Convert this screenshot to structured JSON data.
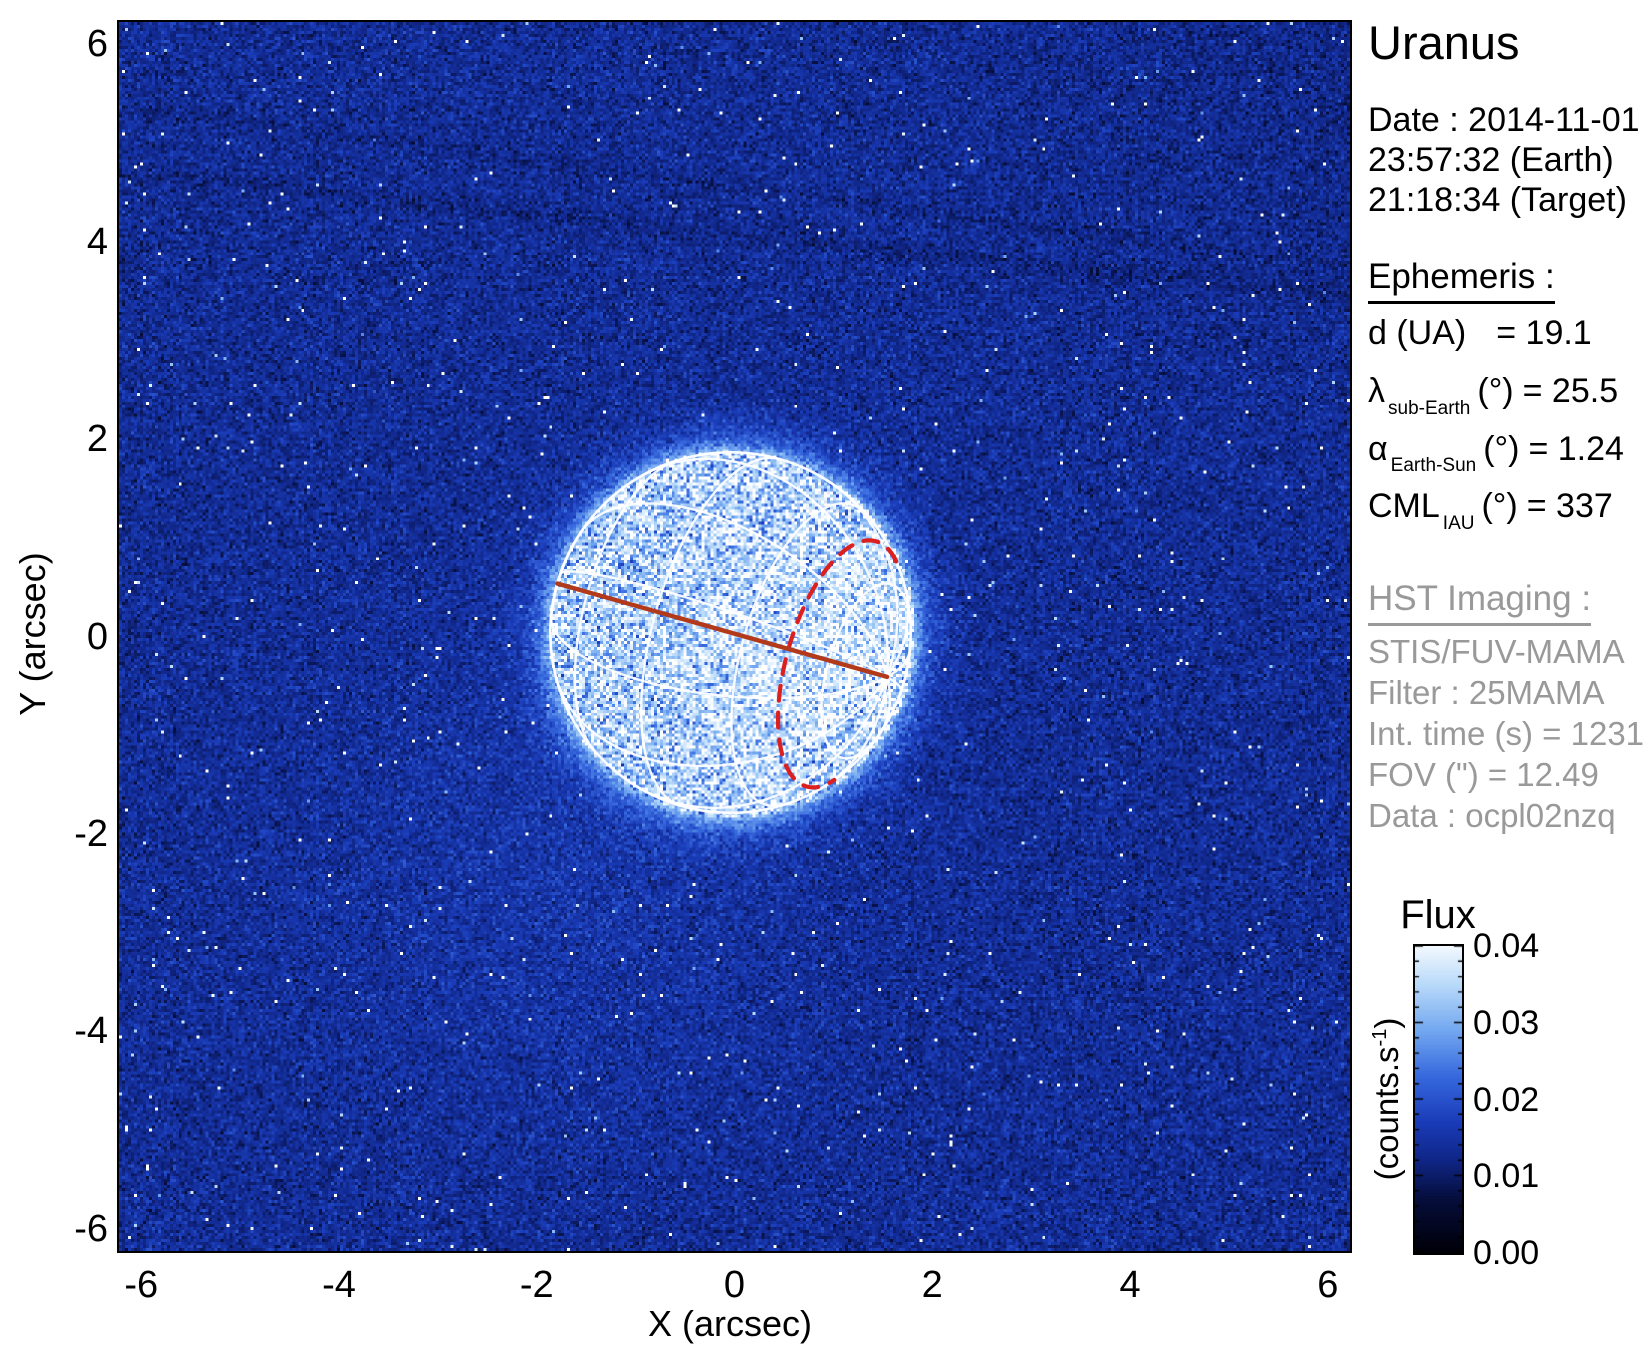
{
  "title": "Uranus",
  "date": {
    "line1": "Date : 2014-11-01",
    "line2": "23:57:32 (Earth)",
    "line3": "21:18:34 (Target)"
  },
  "ephemeris": {
    "heading": "Ephemeris :",
    "rows": [
      {
        "sym": "d (UA)",
        "sub": "",
        "mid": "",
        "val": "= 19.1"
      },
      {
        "sym": "λ",
        "sub": "sub-Earth",
        "mid": "(°)",
        "val": "= 25.5"
      },
      {
        "sym": "α",
        "sub": "Earth-Sun",
        "mid": "(°)",
        "val": "= 1.24"
      },
      {
        "sym": "CML",
        "sub": "IAU",
        "mid": "(°)",
        "val": "= 337"
      }
    ]
  },
  "hst_imaging": {
    "heading": "HST Imaging :",
    "lines": [
      "STIS/FUV-MAMA",
      "Filter : 25MAMA",
      "Int. time (s) = 1231",
      "FOV (\") = 12.49",
      "Data : ocpl02nzq"
    ]
  },
  "colorbar": {
    "title": "Flux",
    "unit_prefix": "(counts.s",
    "unit_sup": "-1",
    "unit_suffix": ")",
    "tick_labels": [
      "0.04",
      "0.03",
      "0.02",
      "0.01",
      "0.00"
    ],
    "tick_values": [
      0.04,
      0.03,
      0.02,
      0.01,
      0.0
    ],
    "range": [
      0.0,
      0.04
    ]
  },
  "chart_data": {
    "type": "heatmap",
    "title": "Uranus",
    "xlabel": "X (arcsec)",
    "ylabel": "Y (arcsec)",
    "xlim": [
      -6.245,
      6.245
    ],
    "ylim": [
      -6.245,
      6.245
    ],
    "xticks": [
      -6,
      -4,
      -2,
      0,
      2,
      4,
      6
    ],
    "yticks": [
      6,
      4,
      2,
      0,
      -2,
      -4,
      -6
    ],
    "flux_range_counts_per_s": [
      0.0,
      0.04
    ],
    "background_flux_mean": 0.0135,
    "disk_flux_mean": 0.0335,
    "planet": {
      "center_arcsec": [
        -0.04,
        0.04
      ],
      "radius_arcsec": 1.83,
      "sub_observer_latitude_deg": 25.5,
      "pole_position_angle_deg": 15.8,
      "latitude_grid_deg": [
        -60,
        -30,
        0,
        30,
        60
      ],
      "longitude_grid_step_deg": 30,
      "central_meridian_longitude_deg": 337,
      "red_dashed_latitude_deg": 45
    },
    "legend_position": "right-colorbar",
    "grid": false,
    "colors": {
      "grid_line": "#ffffff",
      "central_meridian_line": "#b23a1b",
      "dashed_latitude_line": "#dc1f1f",
      "gray_text": "#999999",
      "black_text": "#000000",
      "background_base": "#10247a"
    }
  }
}
